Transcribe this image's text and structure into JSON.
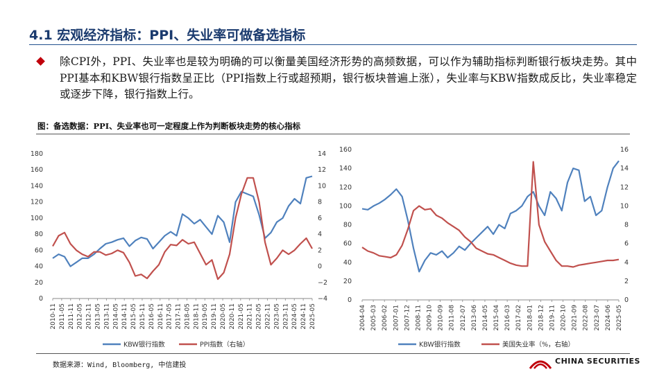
{
  "slide": {
    "title": "4.1 宏观经济指标：PPI、失业率可做备选指标",
    "body": "除CPI外，PPI、失业率也是较为明确的可以衡量美国经济形势的高频数据，可以作为辅助指标判断银行板块走势。其中PPI基本和KBW银行指数呈正比（PPI指数上行或超预期，银行板块普遍上涨），失业率与KBW指数成反比，失业率稳定或逐步下降，银行指数上行。",
    "figure_title": "图：备选数据：PPI、失业率也可一定程度上作为判断板块走势的核心指标",
    "source": "数据来源：Wind, Bloomberg, 中信建投",
    "logo_text": "CHINA SECURITIES"
  },
  "chart_data": [
    {
      "type": "line",
      "title": "",
      "x_ticks": [
        "2010-11",
        "2011-05",
        "2011-11",
        "2012-05",
        "2012-11",
        "2013-05",
        "2013-11",
        "2014-05",
        "2014-11",
        "2015-05",
        "2015-11",
        "2016-05",
        "2016-11",
        "2017-05",
        "2017-11",
        "2018-05",
        "2018-11",
        "2019-05",
        "2019-11",
        "2020-05",
        "2020-11",
        "2021-05",
        "2021-11",
        "2022-05",
        "2022-11",
        "2023-05",
        "2023-11",
        "2024-05",
        "2024-11",
        "2025-05"
      ],
      "y_left": {
        "ticks": [
          0,
          20,
          40,
          60,
          80,
          100,
          120,
          140,
          160,
          180
        ],
        "range": [
          0,
          180
        ]
      },
      "y_right": {
        "ticks": [
          -4,
          -2,
          0,
          2,
          4,
          6,
          8,
          10,
          12,
          14
        ],
        "range": [
          -4,
          14
        ]
      },
      "series": [
        {
          "name": "KBW银行指数",
          "axis": "left",
          "color": "#4f81bd",
          "values": [
            50,
            55,
            52,
            40,
            45,
            50,
            50,
            55,
            62,
            68,
            70,
            73,
            75,
            65,
            72,
            76,
            74,
            62,
            70,
            78,
            83,
            78,
            105,
            100,
            93,
            98,
            89,
            80,
            103,
            95,
            70,
            120,
            133,
            130,
            127,
            104,
            75,
            82,
            95,
            100,
            115,
            124,
            118,
            150,
            152
          ]
        },
        {
          "name": "PPI指数（右轴）",
          "axis": "right",
          "color": "#c0504d",
          "values": [
            2.5,
            3.8,
            4.2,
            2.8,
            2.0,
            1.5,
            1.2,
            1.8,
            1.8,
            1.4,
            1.6,
            2.0,
            1.7,
            0.5,
            -1.2,
            -1.0,
            -1.5,
            -0.6,
            0.2,
            1.8,
            2.7,
            2.6,
            3.3,
            2.8,
            3.0,
            1.6,
            0.2,
            0.8,
            -1.6,
            -0.8,
            1.5,
            6.0,
            9.0,
            11.0,
            11.0,
            8.0,
            3.0,
            0.2,
            1.0,
            2.0,
            1.5,
            2.0,
            2.8,
            3.5,
            2.2
          ]
        }
      ]
    },
    {
      "type": "line",
      "title": "",
      "x_ticks": [
        "2004-04",
        "2005-03",
        "2006-02",
        "2007-01",
        "2007-12",
        "2008-11",
        "2009-10",
        "2010-09",
        "2011-08",
        "2012-07",
        "2013-06",
        "2014-05",
        "2015-04",
        "2016-03",
        "2017-02",
        "2018-01",
        "2018-12",
        "2019-11",
        "2020-10",
        "2021-09",
        "2022-08",
        "2023-07",
        "2024-06",
        "2025-05"
      ],
      "y_left": {
        "ticks": [
          0,
          20,
          40,
          60,
          80,
          100,
          120,
          140,
          160
        ],
        "range": [
          0,
          160
        ]
      },
      "y_right": {
        "ticks": [
          0,
          2,
          4,
          6,
          8,
          10,
          12,
          14,
          16
        ],
        "range": [
          0,
          16
        ]
      },
      "series": [
        {
          "name": "KBW银行指数",
          "axis": "left",
          "color": "#4f81bd",
          "values": [
            97,
            96,
            100,
            103,
            107,
            112,
            118,
            110,
            85,
            55,
            30,
            42,
            50,
            48,
            52,
            45,
            50,
            57,
            53,
            60,
            66,
            72,
            78,
            70,
            80,
            76,
            92,
            95,
            100,
            110,
            115,
            100,
            90,
            115,
            108,
            95,
            125,
            140,
            138,
            105,
            110,
            90,
            95,
            120,
            140,
            148
          ]
        },
        {
          "name": "美国失业率（%，右轴）",
          "axis": "right",
          "color": "#c0504d",
          "values": [
            5.6,
            5.2,
            5.0,
            4.7,
            4.6,
            4.5,
            4.8,
            5.8,
            7.5,
            9.5,
            10.0,
            9.6,
            9.7,
            9.0,
            8.7,
            8.2,
            7.8,
            7.4,
            6.7,
            6.2,
            5.5,
            5.2,
            4.9,
            4.8,
            4.5,
            4.2,
            3.9,
            3.7,
            3.6,
            3.6,
            14.7,
            8.0,
            6.2,
            5.2,
            4.2,
            3.6,
            3.6,
            3.5,
            3.7,
            3.8,
            3.9,
            4.0,
            4.1,
            4.2,
            4.2,
            4.3
          ]
        }
      ]
    }
  ]
}
